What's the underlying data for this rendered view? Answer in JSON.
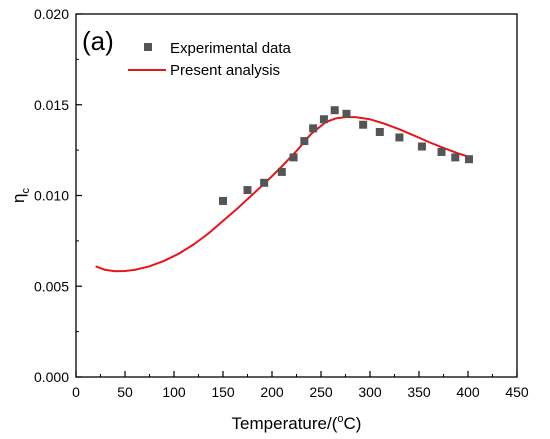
{
  "chart_data": {
    "type": "scatter",
    "panel_label": "(a)",
    "xlabel": "Temperature/(",
    "xlabel_sup": "o",
    "xlabel_suffix": "C)",
    "ylabel": "η",
    "ylabel_sub": "c",
    "xlim": [
      0,
      450
    ],
    "ylim": [
      0.0,
      0.02
    ],
    "xticks": [
      "0",
      "50",
      "100",
      "150",
      "200",
      "250",
      "300",
      "350",
      "400",
      "450"
    ],
    "yticks": [
      "0.000",
      "0.005",
      "0.010",
      "0.015",
      "0.020"
    ],
    "legend_position": "top-left",
    "series": [
      {
        "name": "Experimental data",
        "kind": "scatter",
        "marker": "square",
        "color": "#555555",
        "x": [
          150,
          175,
          192,
          210,
          222,
          233,
          242,
          253,
          264,
          276,
          293,
          310,
          330,
          353,
          373,
          387,
          401
        ],
        "y": [
          0.0097,
          0.0103,
          0.0107,
          0.0113,
          0.0121,
          0.013,
          0.0137,
          0.0142,
          0.0147,
          0.0145,
          0.0139,
          0.0135,
          0.0132,
          0.0127,
          0.0124,
          0.0121,
          0.012
        ]
      },
      {
        "name": "Present analysis",
        "kind": "line",
        "color": "#e8141a",
        "x": [
          20,
          30,
          40,
          50,
          60,
          75,
          90,
          105,
          120,
          135,
          150,
          165,
          180,
          195,
          210,
          225,
          240,
          255,
          265,
          275,
          285,
          300,
          315,
          330,
          345,
          360,
          375,
          390,
          400
        ],
        "y": [
          0.0061,
          0.0059,
          0.00583,
          0.00584,
          0.0059,
          0.0061,
          0.0064,
          0.0068,
          0.0073,
          0.0079,
          0.0086,
          0.0093,
          0.01005,
          0.0108,
          0.0116,
          0.01245,
          0.0134,
          0.01405,
          0.01425,
          0.01432,
          0.01432,
          0.0142,
          0.01395,
          0.01365,
          0.0133,
          0.01295,
          0.01262,
          0.01232,
          0.01215
        ]
      }
    ]
  }
}
